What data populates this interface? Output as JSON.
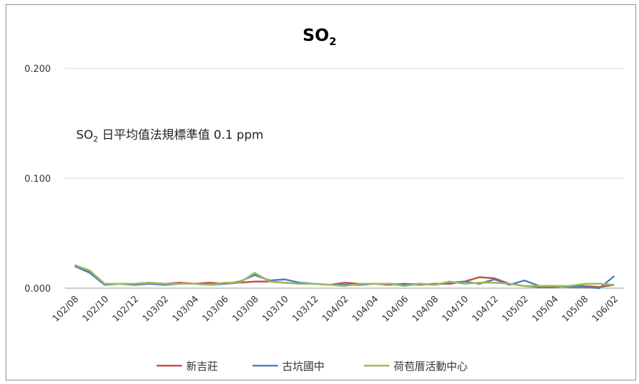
{
  "chart_data": {
    "type": "line",
    "title": "SO",
    "title_subscript": "2",
    "annotation": {
      "prefix": "SO",
      "subscript": "2",
      "text": " 日平均值法規標準值 0.1 ppm"
    },
    "yticks": [
      "0.000",
      "0.100",
      "0.200"
    ],
    "ylim": [
      0,
      0.2
    ],
    "grid": "horizontal",
    "legend_position": "bottom",
    "x_tick_labels": [
      "102/08",
      "102/10",
      "102/12",
      "103/02",
      "103/04",
      "103/06",
      "103/08",
      "103/10",
      "103/12",
      "104/02",
      "104/04",
      "104/06",
      "104/08",
      "104/10",
      "104/12",
      "105/02",
      "105/04",
      "105/08",
      "106/02"
    ],
    "x_tick_positions": [
      0,
      2,
      4,
      6,
      8,
      10,
      12,
      14,
      16,
      18,
      20,
      22,
      24,
      26,
      28,
      30,
      32,
      34,
      36
    ],
    "n_points": 37,
    "series": [
      {
        "name": "新吉莊",
        "color": "#c0504d",
        "values": [
          0.02,
          0.015,
          0.004,
          0.004,
          0.004,
          0.005,
          0.004,
          0.005,
          0.004,
          0.005,
          0.004,
          0.005,
          0.006,
          0.006,
          0.005,
          0.004,
          0.004,
          0.003,
          0.005,
          0.004,
          0.004,
          0.003,
          0.004,
          0.003,
          0.004,
          0.004,
          0.006,
          0.01,
          0.009,
          0.004,
          0.002,
          0.001,
          0.001,
          0.002,
          0.002,
          0.001,
          0.003
        ]
      },
      {
        "name": "古坑國中",
        "color": "#4f81bd",
        "values": [
          0.02,
          0.014,
          0.003,
          0.004,
          0.003,
          0.004,
          0.003,
          0.004,
          0.004,
          0.003,
          0.004,
          0.006,
          0.012,
          0.007,
          0.008,
          0.005,
          0.004,
          0.003,
          0.003,
          0.003,
          0.004,
          0.004,
          0.003,
          0.004,
          0.003,
          0.005,
          0.006,
          0.004,
          0.008,
          0.003,
          0.007,
          0.002,
          0.002,
          0.001,
          0.001,
          0.0,
          0.011
        ]
      },
      {
        "name": "荷苞厝活動中心",
        "color": "#9bbb59",
        "values": [
          0.021,
          0.016,
          0.004,
          0.004,
          0.004,
          0.005,
          0.004,
          0.004,
          0.004,
          0.003,
          0.005,
          0.005,
          0.014,
          0.006,
          0.005,
          0.004,
          0.004,
          0.003,
          0.002,
          0.004,
          0.004,
          0.004,
          0.002,
          0.004,
          0.003,
          0.006,
          0.004,
          0.005,
          0.005,
          0.004,
          0.002,
          0.002,
          0.002,
          0.002,
          0.004,
          0.004,
          0.003
        ]
      }
    ]
  }
}
